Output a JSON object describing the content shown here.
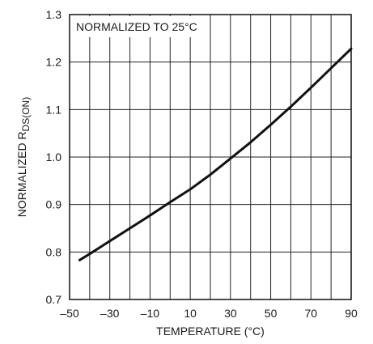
{
  "chart_data": {
    "type": "line",
    "xlabel": "TEMPERATURE (°C)",
    "ylabel_main": "NORMALIZED R",
    "ylabel_sub": "DS(ON)",
    "annotation": "NORMALIZED TO 25°C",
    "xlim": [
      -50,
      90
    ],
    "ylim": [
      0.7,
      1.3
    ],
    "x_ticks": [
      -50,
      -30,
      -10,
      10,
      30,
      50,
      70,
      90
    ],
    "x_tick_labels": [
      "–50",
      "–30",
      "–10",
      "10",
      "30",
      "50",
      "70",
      "90"
    ],
    "y_ticks": [
      0.7,
      0.8,
      0.9,
      1.0,
      1.1,
      1.2,
      1.3
    ],
    "y_tick_labels": [
      "0.7",
      "0.8",
      "0.9",
      "1.0",
      "1.1",
      "1.2",
      "1.3"
    ],
    "x_minor_step": 10,
    "grid": true,
    "series": [
      {
        "x": [
          -45,
          -40,
          -30,
          -20,
          -10,
          0,
          10,
          20,
          30,
          40,
          50,
          60,
          70,
          80,
          90
        ],
        "y": [
          0.783,
          0.796,
          0.823,
          0.85,
          0.877,
          0.905,
          0.932,
          0.963,
          0.997,
          1.031,
          1.068,
          1.106,
          1.146,
          1.187,
          1.228
        ]
      }
    ]
  }
}
